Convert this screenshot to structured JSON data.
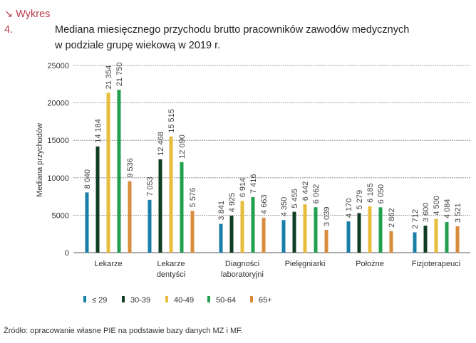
{
  "header": {
    "arrow": "↘",
    "label": "Wykres 4.",
    "title_line1": "Mediana miesięcznego przychodu brutto pracowników zawodów medycznych",
    "title_line2": "w podziale grupę wiekową w 2019 r."
  },
  "source": "Źródło: opracowanie własne PIE na podstawie bazy danych MZ i MF.",
  "chart_data": {
    "type": "bar",
    "title": "Mediana miesięcznego przychodu brutto pracowników zawodów medycznych w podziale grupę wiekową w 2019 r.",
    "ylabel": "Mediana przychodów",
    "ylim": [
      0,
      25000
    ],
    "yticks": [
      "0",
      "5000",
      "10000",
      "15000",
      "20000",
      "25000"
    ],
    "grid": true,
    "legend_position": "bottom",
    "categories": [
      [
        "Lekarze"
      ],
      [
        "Lekarze",
        "dentyści"
      ],
      [
        "Diagności",
        "laboratoryjni"
      ],
      [
        "Pielęgniarki"
      ],
      [
        "Położne"
      ],
      [
        "Fizjoterapeuci"
      ]
    ],
    "series": [
      {
        "name": "≤ 29",
        "color": "#1a7fa8",
        "values": [
          8040,
          7053,
          3841,
          4350,
          4170,
          2712
        ],
        "labels": [
          "8 040",
          "7 053",
          "3 841",
          "4 350",
          "4 170",
          "2 712"
        ]
      },
      {
        "name": "30-39",
        "color": "#0f3d22",
        "values": [
          14184,
          12468,
          4925,
          5455,
          5279,
          3600
        ],
        "labels": [
          "14 184",
          "12 468",
          "4 925",
          "5 455",
          "5 279",
          "3 600"
        ]
      },
      {
        "name": "40-49",
        "color": "#e8bc3c",
        "values": [
          21354,
          15515,
          6914,
          6442,
          6185,
          4500
        ],
        "labels": [
          "21 354",
          "15 515",
          "6 914",
          "6 442",
          "6 185",
          "4 500"
        ]
      },
      {
        "name": "50-64",
        "color": "#22a050",
        "values": [
          21750,
          12090,
          7416,
          6062,
          6050,
          4084
        ],
        "labels": [
          "21 750",
          "12 090",
          "7 416",
          "6 062",
          "6 050",
          "4 084"
        ]
      },
      {
        "name": "65+",
        "color": "#d98c3c",
        "values": [
          9536,
          5576,
          4663,
          3039,
          2862,
          3521
        ],
        "labels": [
          "9 536",
          "5 576",
          "4 663",
          "3 039",
          "2 862",
          "3 521"
        ]
      }
    ]
  }
}
